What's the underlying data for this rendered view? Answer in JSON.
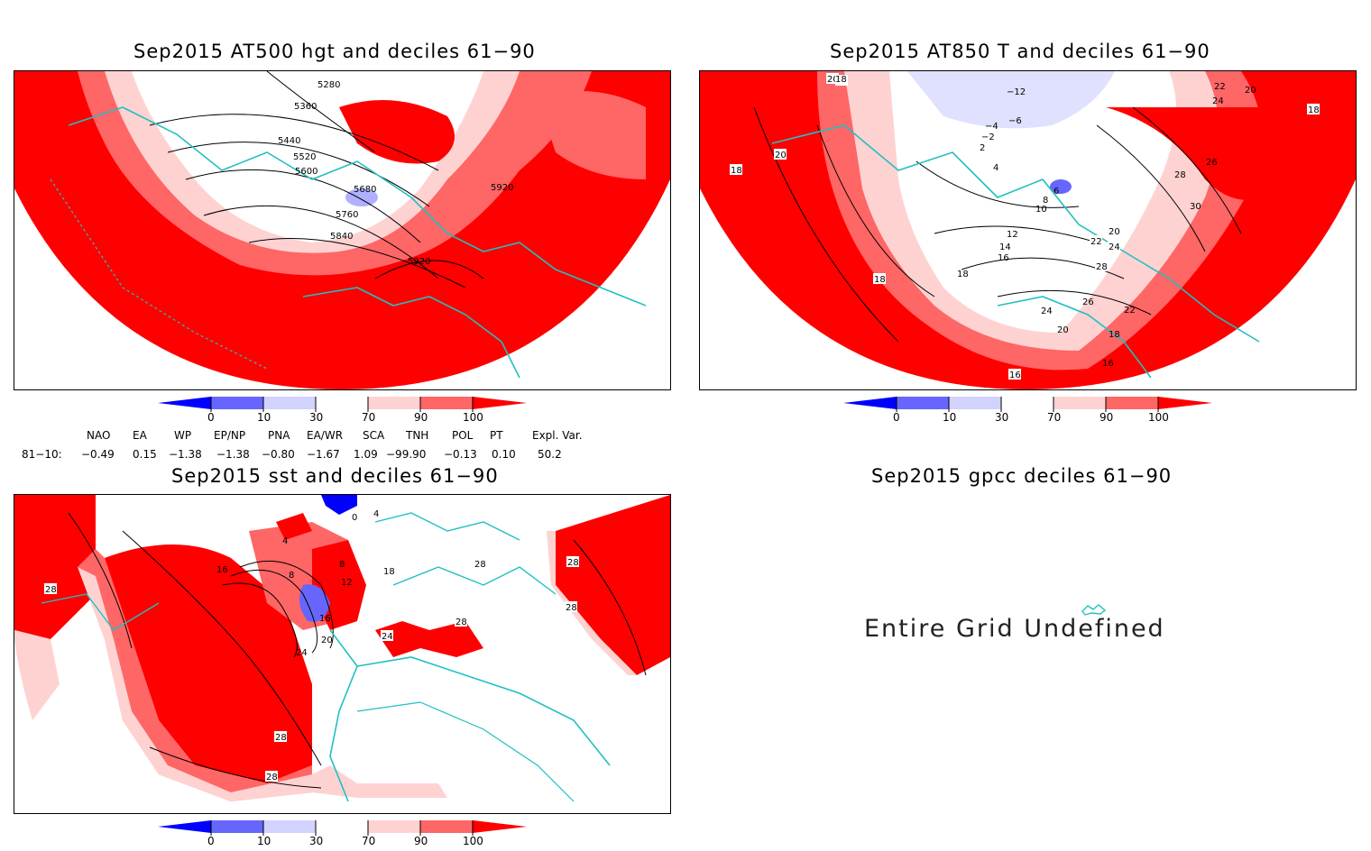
{
  "panels": {
    "p1": {
      "title": "Sep2015 AT500 hgt and deciles 61−90",
      "contour_labels": [
        "5280",
        "5360",
        "5440",
        "5520",
        "5600",
        "5680",
        "5760",
        "5840",
        "5920",
        "5920"
      ]
    },
    "p2": {
      "title": "Sep2015 AT850 T and deciles 61−90",
      "contour_labels": [
        "18",
        "20",
        "20",
        "18",
        "−12",
        "22",
        "24",
        "20",
        "18",
        "−4",
        "−6",
        "−2",
        "2",
        "4",
        "6",
        "8",
        "10",
        "12",
        "14",
        "16",
        "18",
        "22",
        "24",
        "20",
        "26",
        "28",
        "30",
        "28",
        "26",
        "24",
        "22",
        "20",
        "18",
        "16",
        "16",
        "18"
      ]
    },
    "p3": {
      "title": "Sep2015 sst and deciles 61−90",
      "contour_labels": [
        "0",
        "4",
        "4",
        "8",
        "8",
        "12",
        "16",
        "16",
        "20",
        "24",
        "28",
        "28",
        "28",
        "28",
        "28",
        "24",
        "18",
        "28",
        "28"
      ]
    },
    "p4": {
      "title": "Sep2015 gpcc deciles 61−90",
      "message": "Entire Grid Undefined"
    }
  },
  "colorbar": {
    "ticks": [
      "0",
      "10",
      "30",
      "70",
      "90",
      "100"
    ],
    "colors": [
      "#0000ff",
      "#6666ff",
      "#d2d2ff",
      "#ffffff",
      "#ffd2d2",
      "#ff6666",
      "#ff0000"
    ]
  },
  "indices": {
    "row_label": "81−10:",
    "names": [
      "NAO",
      "EA",
      "WP",
      "EP/NP",
      "PNA",
      "EA/WR",
      "SCA",
      "TNH",
      "POL",
      "PT",
      "Expl. Var."
    ],
    "values": [
      "−0.49",
      "0.15",
      "−1.38",
      "−1.38",
      "−0.80",
      "−1.67",
      "1.09",
      "−99.90",
      "−0.13",
      "0.10",
      "50.2"
    ]
  }
}
